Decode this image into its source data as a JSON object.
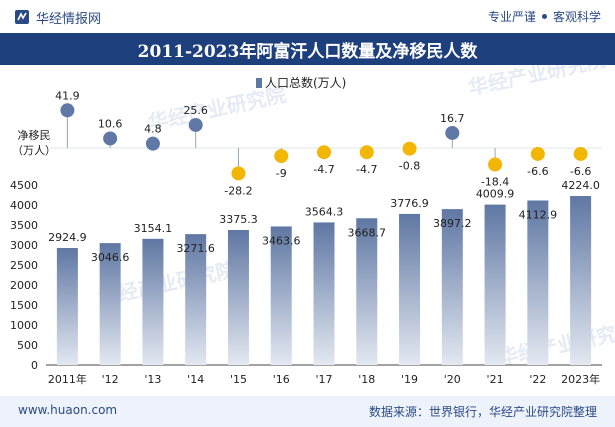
{
  "header": {
    "brand": "华经情报网",
    "right_text_1": "专业严谨",
    "right_text_2": "客观科学"
  },
  "title": "2011-2023年阿富汗人口数量及净移民人数",
  "footer": {
    "url": "www.huaon.com",
    "source": "数据来源：世界银行，华经产业研究院整理"
  },
  "watermark": "华经产业研究院",
  "colors": {
    "bar_top": "#5f77a3",
    "bar_bottom": "#e3e8f1",
    "positive_dot": "#5f78a6",
    "negative_dot": "#f2b705",
    "title_bg": "#1d3f7c"
  },
  "chart_data": {
    "type": "bar",
    "categories": [
      "2011年",
      "'12",
      "'13",
      "'14",
      "'15",
      "'16",
      "'17",
      "'18",
      "'19",
      "'20",
      "'21",
      "'22",
      "2023年"
    ],
    "series": [
      {
        "name": "人口总数(万人)",
        "values": [
          2924.9,
          3046.6,
          3154.1,
          3271.6,
          3375.3,
          3463.6,
          3564.3,
          3668.7,
          3776.9,
          3897.2,
          4009.9,
          4112.9,
          4224.0
        ],
        "labels": [
          "2924.9",
          "3046.6",
          "3154.1",
          "3271.6",
          "3375.3",
          "3463.6",
          "3564.3",
          "3668.7",
          "3776.9",
          "3897.2",
          "4009.9",
          "4112.9",
          "4224.0"
        ]
      },
      {
        "name": "净移民（万人）",
        "values": [
          41.9,
          10.6,
          4.8,
          25.6,
          -28.2,
          -9,
          -4.7,
          -4.7,
          -0.8,
          16.7,
          -18.4,
          -6.6,
          -6.6
        ],
        "labels": [
          "41.9",
          "10.6",
          "4.8",
          "25.6",
          "-28.2",
          "-9",
          "-4.7",
          "-4.7",
          "-0.8",
          "16.7",
          "-18.4",
          "-6.6",
          "-6.6"
        ]
      }
    ],
    "yticks": [
      "0",
      "500",
      "1000",
      "1500",
      "2000",
      "2500",
      "3000",
      "3500",
      "4000",
      "4500"
    ],
    "ylim": [
      0,
      4500
    ],
    "upper_label_line1": "净移民",
    "upper_label_line2": "（万人）",
    "legend": "人口总数(万人)",
    "legend_position": "top-center"
  }
}
